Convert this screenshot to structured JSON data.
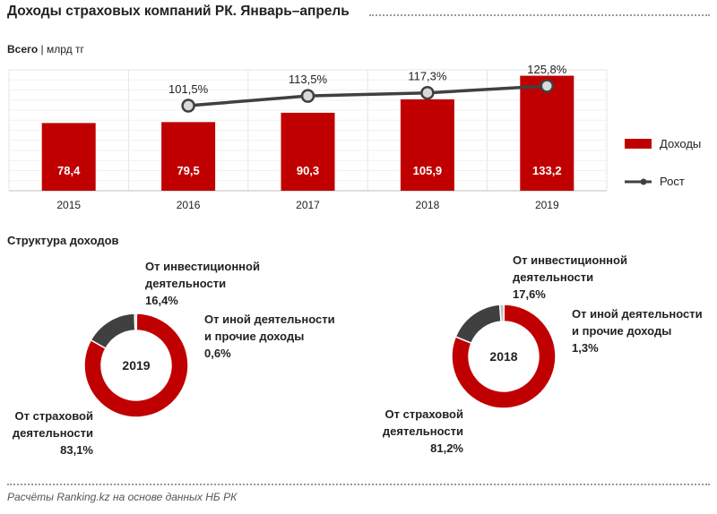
{
  "title": "Доходы страховых компаний РК. Январь–апрель",
  "subtitle": {
    "bold": "Всего",
    "unit": "| млрд тг"
  },
  "section2_title": "Структура  доходов",
  "source": "Расчёты Ranking.kz на основе данных НБ РК",
  "colors": {
    "income": "#C00000",
    "growth": "#404040",
    "invest": "#404040",
    "other": "#BFBFBF"
  },
  "chart_data": [
    {
      "type": "bar",
      "title": "Доходы страховых компаний РК. Январь–апрель",
      "ylabel": "млрд тг",
      "categories": [
        "2015",
        "2016",
        "2017",
        "2018",
        "2019"
      ],
      "series": [
        {
          "name": "Доходы",
          "type": "bar",
          "values": [
            78.4,
            79.5,
            90.3,
            105.9,
            133.2
          ],
          "labels": [
            "78,4",
            "79,5",
            "90,3",
            "105,9",
            "133,2"
          ]
        },
        {
          "name": "Рост",
          "type": "line",
          "values": [
            null,
            101.5,
            113.5,
            117.3,
            125.8
          ],
          "labels": [
            "",
            "101,5%",
            "113,5%",
            "117,3%",
            "125,8%"
          ]
        }
      ],
      "ylim": [
        0,
        140
      ],
      "legend": [
        "Доходы",
        "Рост"
      ]
    },
    {
      "type": "pie",
      "center_label": "2019",
      "slices": [
        {
          "name": "От страховой деятельности",
          "value": 83.1,
          "label": "83,1%",
          "lines": [
            "От страховой",
            "деятельности"
          ]
        },
        {
          "name": "От инвестиционной деятельности",
          "value": 16.4,
          "label": "16,4%",
          "lines": [
            "От инвестиционной",
            "деятельности"
          ]
        },
        {
          "name": "От иной деятельности и прочие доходы",
          "value": 0.6,
          "label": "0,6%",
          "lines": [
            "От иной деятельности",
            "и прочие  доходы"
          ]
        }
      ]
    },
    {
      "type": "pie",
      "center_label": "2018",
      "slices": [
        {
          "name": "От страховой деятельности",
          "value": 81.2,
          "label": "81,2%",
          "lines": [
            "От страховой",
            "деятельности"
          ]
        },
        {
          "name": "От инвестиционной деятельности",
          "value": 17.6,
          "label": "17,6%",
          "lines": [
            "От инвестиционной",
            "деятельности"
          ]
        },
        {
          "name": "От иной деятельности и прочие доходы",
          "value": 1.3,
          "label": "1,3%",
          "lines": [
            "От иной деятельности",
            "и прочие  доходы"
          ]
        }
      ]
    }
  ]
}
